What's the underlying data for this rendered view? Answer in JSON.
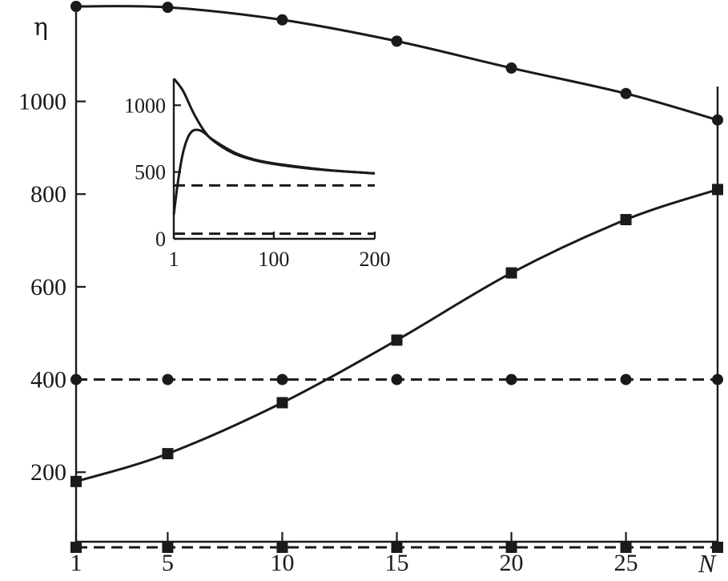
{
  "chart_data": {
    "type": "line",
    "xlabel": "N",
    "ylabel": "η",
    "x_ticks": [
      1,
      5,
      10,
      15,
      20,
      25
    ],
    "x_tick_labels": [
      "1",
      "5",
      "10",
      "15",
      "20",
      "25"
    ],
    "xlim": [
      1,
      29
    ],
    "y_ticks": [
      200,
      400,
      600,
      800,
      1000
    ],
    "y_tick_labels": [
      "200",
      "400",
      "600",
      "800",
      "1000"
    ],
    "ylim": [
      50,
      1205
    ],
    "grid": false,
    "legend": "none",
    "series": [
      {
        "style": "solid",
        "marker": "circle",
        "x": [
          1,
          5,
          10,
          15,
          20,
          25,
          29
        ],
        "y": [
          1205,
          1203,
          1176,
          1130,
          1072,
          1017,
          960
        ]
      },
      {
        "style": "solid",
        "marker": "square",
        "x": [
          1,
          5,
          10,
          15,
          20,
          25,
          29
        ],
        "y": [
          180,
          240,
          350,
          485,
          630,
          745,
          810
        ]
      },
      {
        "style": "dashed",
        "marker": "circle",
        "x": [
          1,
          5,
          10,
          15,
          20,
          25,
          29
        ],
        "y": [
          400,
          400,
          400,
          400,
          400,
          400,
          400
        ]
      },
      {
        "style": "dashed",
        "marker": "square",
        "x": [
          1,
          5,
          10,
          15,
          20,
          25,
          29
        ],
        "y": [
          38,
          38,
          38,
          38,
          38,
          38,
          38
        ]
      }
    ],
    "inset": {
      "type": "line",
      "x_ticks": [
        1,
        100,
        200
      ],
      "x_tick_labels": [
        "1",
        "100",
        "200"
      ],
      "xlim": [
        1,
        200
      ],
      "y_ticks": [
        0,
        500,
        1000
      ],
      "y_tick_labels": [
        "0",
        "500",
        "1000"
      ],
      "ylim": [
        0,
        1200
      ],
      "series": [
        {
          "style": "solid",
          "x": [
            1,
            10,
            20,
            30,
            40,
            60,
            80,
            100,
            130,
            160,
            200
          ],
          "y": [
            1200,
            1110,
            950,
            820,
            735,
            640,
            590,
            560,
            530,
            510,
            490
          ]
        },
        {
          "style": "solid",
          "x": [
            1,
            5,
            10,
            15,
            20,
            25,
            30,
            40,
            60,
            80,
            100,
            130,
            160,
            200
          ],
          "y": [
            180,
            420,
            640,
            760,
            810,
            815,
            800,
            740,
            650,
            595,
            565,
            535,
            510,
            490
          ]
        },
        {
          "style": "dashed",
          "x": [
            1,
            200
          ],
          "y": [
            400,
            400
          ]
        },
        {
          "style": "dashed",
          "x": [
            1,
            200
          ],
          "y": [
            38,
            38
          ]
        }
      ]
    }
  }
}
